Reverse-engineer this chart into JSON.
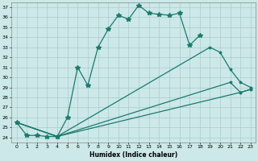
{
  "xlabel": "Humidex (Indice chaleur)",
  "bg_color": "#cce8e8",
  "grid_color": "#aacccc",
  "line_color": "#1a7a6e",
  "x_min": 0,
  "x_max": 23,
  "y_min": 24,
  "y_max": 37,
  "series_main": {
    "x": [
      0,
      1,
      2,
      3,
      4,
      5,
      6,
      7,
      8,
      9,
      10,
      11,
      12,
      13,
      14,
      15,
      16,
      17,
      18
    ],
    "y": [
      25.5,
      24.2,
      24.2,
      24.1,
      24.1,
      26.0,
      31.0,
      29.2,
      33.0,
      34.8,
      36.2,
      35.8,
      37.2,
      36.4,
      36.3,
      36.2,
      36.4,
      33.2,
      34.2
    ]
  },
  "series_upper_diag": {
    "x": [
      0,
      4,
      19,
      20,
      21,
      22,
      23
    ],
    "y": [
      25.5,
      24.1,
      33.0,
      32.5,
      30.8,
      29.5,
      29.0
    ]
  },
  "series_mid_diag": {
    "x": [
      0,
      4,
      21,
      22,
      23
    ],
    "y": [
      25.5,
      24.1,
      29.5,
      28.5,
      28.8
    ]
  },
  "series_low_diag": {
    "x": [
      0,
      4,
      22,
      23
    ],
    "y": [
      25.5,
      24.1,
      28.5,
      28.8
    ]
  }
}
